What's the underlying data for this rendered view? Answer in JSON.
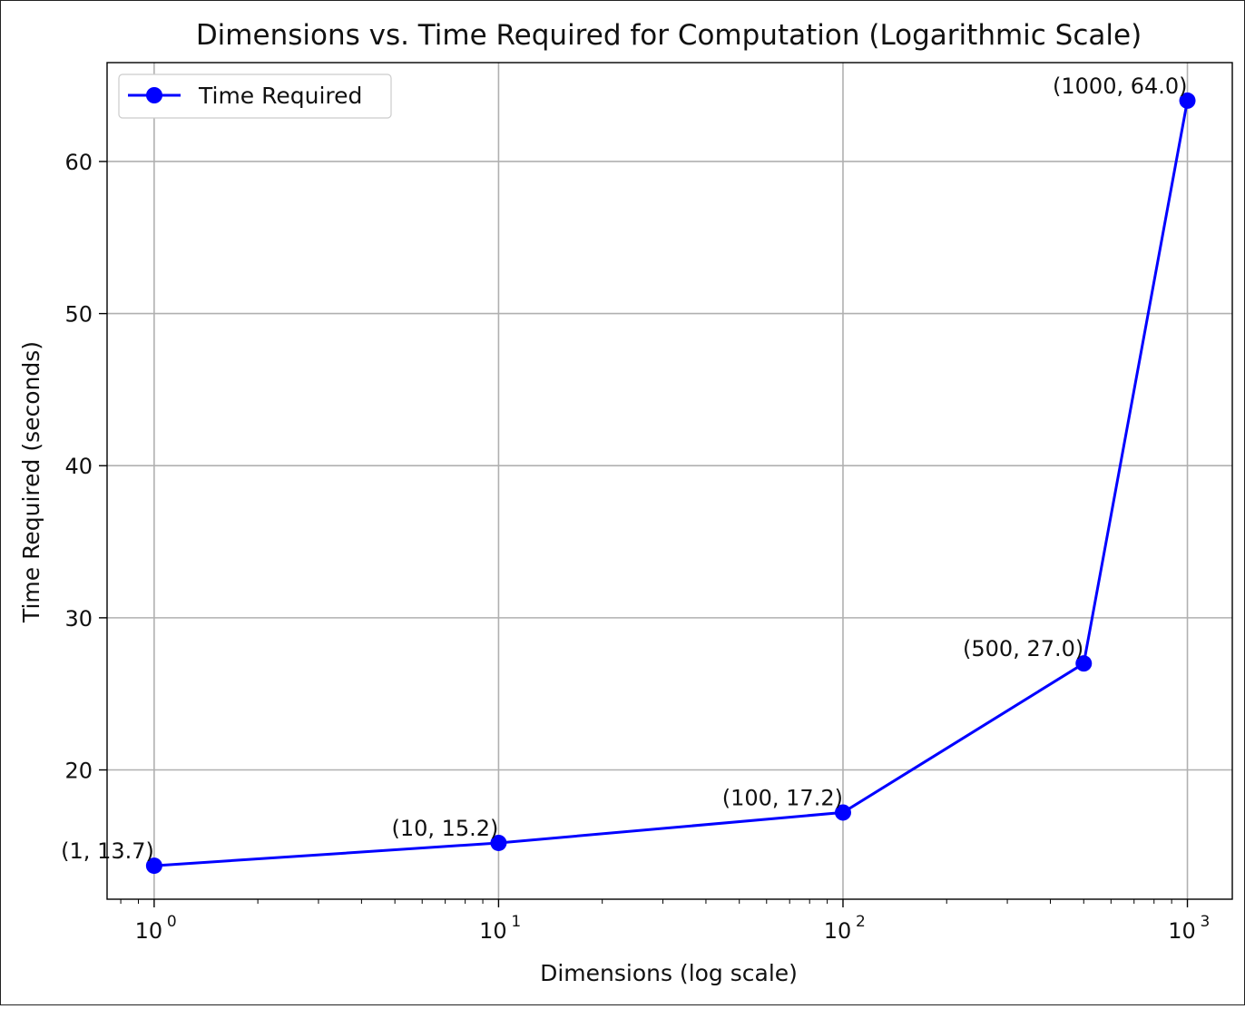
{
  "chart_data": {
    "type": "line",
    "title": "Dimensions vs. Time Required for Computation (Logarithmic Scale)",
    "xlabel": "Dimensions (log scale)",
    "ylabel": "Time Required (seconds)",
    "x_scale": "log",
    "xlim": [
      0.73,
      1350
    ],
    "ylim": [
      11.5,
      66.5
    ],
    "grid": true,
    "legend_position": "top-left",
    "x_ticks": [
      {
        "value": 1,
        "base": "10",
        "exp": "0"
      },
      {
        "value": 10,
        "base": "10",
        "exp": "1"
      },
      {
        "value": 100,
        "base": "10",
        "exp": "2"
      },
      {
        "value": 1000,
        "base": "10",
        "exp": "3"
      }
    ],
    "y_ticks": [
      20,
      30,
      40,
      50,
      60
    ],
    "series": [
      {
        "name": "Time Required",
        "color": "#0000ff",
        "marker": "circle",
        "points": [
          {
            "x": 1,
            "y": 13.7,
            "label": "(1, 13.7)"
          },
          {
            "x": 10,
            "y": 15.2,
            "label": "(10, 15.2)"
          },
          {
            "x": 100,
            "y": 17.2,
            "label": "(100, 17.2)"
          },
          {
            "x": 500,
            "y": 27.0,
            "label": "(500, 27.0)"
          },
          {
            "x": 1000,
            "y": 64.0,
            "label": "(1000, 64.0)"
          }
        ]
      }
    ]
  }
}
